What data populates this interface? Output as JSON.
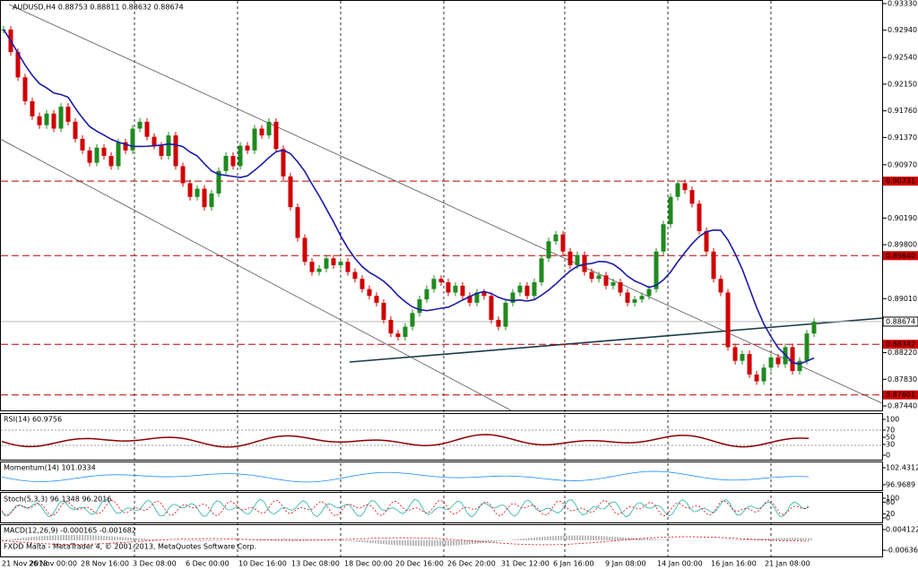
{
  "chart": {
    "header": "AUDUSD,H4  0.88753 0.88811 0.88632 0.88674",
    "ylim": [
      0.8744,
      0.9333
    ],
    "price_ticks": [
      {
        "value": 0.9333,
        "label": "0.93330"
      },
      {
        "value": 0.9294,
        "label": "0.92940"
      },
      {
        "value": 0.9254,
        "label": "0.92540"
      },
      {
        "value": 0.9215,
        "label": "0.92150"
      },
      {
        "value": 0.9176,
        "label": "0.91760"
      },
      {
        "value": 0.9137,
        "label": "0.91370"
      },
      {
        "value": 0.9097,
        "label": "0.90970"
      },
      {
        "value": 0.9019,
        "label": "0.90190"
      },
      {
        "value": 0.898,
        "label": "0.89800"
      },
      {
        "value": 0.8901,
        "label": "0.89010"
      },
      {
        "value": 0.8822,
        "label": "0.88220"
      },
      {
        "value": 0.8783,
        "label": "0.87830"
      },
      {
        "value": 0.8744,
        "label": "0.87440"
      }
    ],
    "levels": [
      {
        "value": 0.90731,
        "label": "0.90731"
      },
      {
        "value": 0.8964,
        "label": "0.89640"
      },
      {
        "value": 0.88342,
        "label": "0.88342"
      },
      {
        "value": 0.87601,
        "label": "0.87601"
      }
    ],
    "current": {
      "value": 0.88674,
      "label": "0.88674"
    },
    "closes": [
      0.9295,
      0.9262,
      0.9225,
      0.919,
      0.9168,
      0.9155,
      0.9172,
      0.915,
      0.9182,
      0.916,
      0.9135,
      0.9118,
      0.91,
      0.9122,
      0.911,
      0.9095,
      0.913,
      0.9118,
      0.915,
      0.916,
      0.9138,
      0.9125,
      0.911,
      0.914,
      0.9095,
      0.907,
      0.905,
      0.9062,
      0.9035,
      0.9055,
      0.9088,
      0.911,
      0.9095,
      0.9125,
      0.9118,
      0.915,
      0.914,
      0.916,
      0.912,
      0.908,
      0.9035,
      0.899,
      0.8955,
      0.894,
      0.8945,
      0.896,
      0.895,
      0.8955,
      0.894,
      0.893,
      0.8915,
      0.8905,
      0.8895,
      0.887,
      0.885,
      0.8845,
      0.886,
      0.888,
      0.89,
      0.8915,
      0.893,
      0.8925,
      0.891,
      0.892,
      0.8905,
      0.8895,
      0.891,
      0.8905,
      0.887,
      0.886,
      0.8895,
      0.891,
      0.892,
      0.8905,
      0.8925,
      0.896,
      0.8985,
      0.8995,
      0.897,
      0.895,
      0.8965,
      0.894,
      0.893,
      0.8935,
      0.892,
      0.8925,
      0.891,
      0.8895,
      0.89,
      0.8905,
      0.8915,
      0.897,
      0.901,
      0.905,
      0.907,
      0.906,
      0.904,
      0.9,
      0.897,
      0.893,
      0.891,
      0.883,
      0.881,
      0.882,
      0.879,
      0.878,
      0.88,
      0.8815,
      0.8805,
      0.883,
      0.8795,
      0.881,
      0.885,
      0.8867
    ],
    "x_labels": [
      "21 Nov 2013",
      "26 Nov 00:00",
      "28 Nov 16:00",
      "3 Dec 08:00",
      "6 Dec 00:00",
      "10 Dec 16:00",
      "13 Dec 08:00",
      "18 Dec 00:00",
      "20 Dec 16:00",
      "26 Dec 20:00",
      "31 Dec 12:00",
      "6 Jan 16:00",
      "9 Jan 08:00",
      "14 Jan 00:00",
      "16 Jan 16:00",
      "21 Jan 08:00"
    ]
  },
  "rsi": {
    "label": "RSI(14) 60.9756",
    "ticks": [
      100,
      70,
      50,
      30,
      0
    ]
  },
  "momentum": {
    "label": "Momentum(14) 101.0334",
    "ticks": [
      102.4312,
      96.9689
    ]
  },
  "stoch": {
    "label": "Stoch(5,3,3) 96.1348 96.2016",
    "ticks": [
      100,
      80,
      20,
      0
    ]
  },
  "macd": {
    "label": "MACD(12,26,9) -0.000165 -0.001682",
    "ticks": [
      0.004122,
      -0.006368
    ]
  },
  "footer": "FXDD Malta - MetaTrader 4, © 2001-2013, MetaQuotes Software Corp."
}
